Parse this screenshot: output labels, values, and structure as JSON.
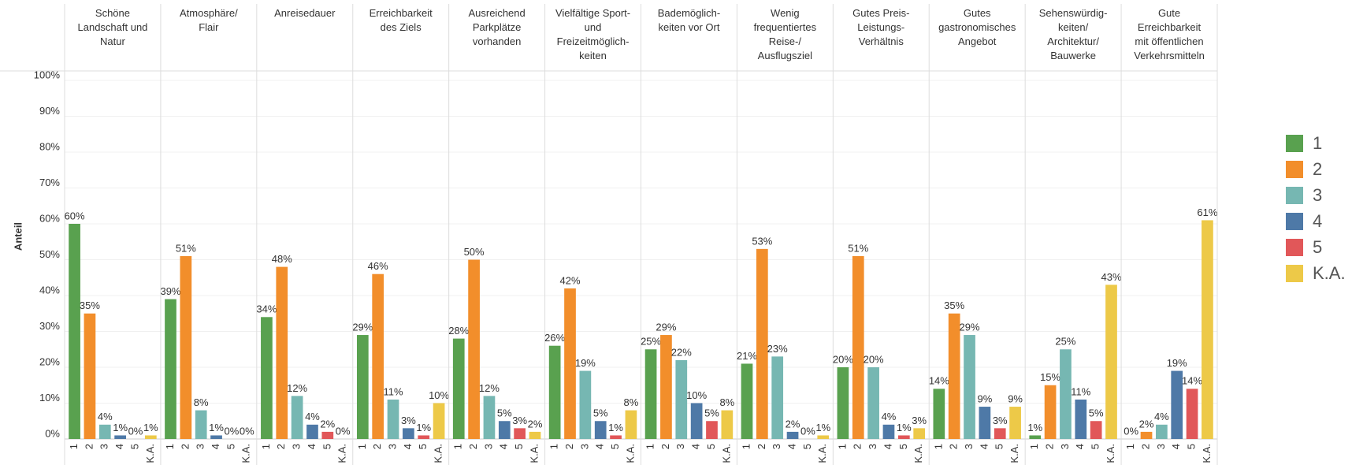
{
  "chart_data": {
    "type": "bar",
    "y_label": "Anteil",
    "categories": [
      "Schöne\nLandschaft und\nNatur",
      "Atmosphäre/\nFlair",
      "Anreisedauer",
      "Erreichbarkeit\ndes Ziels",
      "Ausreichend\nParkplätze\nvorhanden",
      "Vielfältige Sport-\nund\nFreizeitmöglich-\nkeiten",
      "Bademöglich-\nkeiten vor Ort",
      "Wenig\nfrequentiertes\nReise-/\nAusflugsziel",
      "Gutes Preis-\nLeistungs-\nVerhältnis",
      "Gutes\ngastronomisches\nAngebot",
      "Sehenswürdig-\nkeiten/\nArchitektur/\nBauwerke",
      "Gute\nErreichbarkeit\nmit öffentlichen\nVerkehrsmitteln"
    ],
    "series": [
      {
        "name": "1",
        "color": "#59a14f",
        "values": [
          60,
          39,
          34,
          29,
          28,
          26,
          25,
          21,
          20,
          14,
          1,
          0
        ],
        "value_labels": [
          "60%",
          "39%",
          "34%",
          "29%",
          "28%",
          "26%",
          "25%",
          "21%",
          "20%",
          "14%",
          "1%",
          "0%"
        ]
      },
      {
        "name": "2",
        "color": "#f28e2b",
        "values": [
          35,
          51,
          48,
          46,
          50,
          42,
          29,
          53,
          51,
          35,
          15,
          2
        ],
        "value_labels": [
          "35%",
          "51%",
          "48%",
          "46%",
          "50%",
          "42%",
          "29%",
          "53%",
          "51%",
          "35%",
          "15%",
          "2%"
        ]
      },
      {
        "name": "3",
        "color": "#76b7b2",
        "values": [
          4,
          8,
          12,
          11,
          12,
          19,
          22,
          23,
          20,
          29,
          25,
          4
        ],
        "value_labels": [
          "4%",
          "8%",
          "12%",
          "11%",
          "12%",
          "19%",
          "22%",
          "23%",
          "20%",
          "29%",
          "25%",
          "4%"
        ]
      },
      {
        "name": "4",
        "color": "#4e79a7",
        "values": [
          1,
          1,
          4,
          3,
          5,
          5,
          10,
          2,
          4,
          9,
          11,
          19
        ],
        "value_labels": [
          "1%",
          "1%",
          "4%",
          "3%",
          "5%",
          "5%",
          "10%",
          "2%",
          "4%",
          "9%",
          "11%",
          "19%"
        ]
      },
      {
        "name": "5",
        "color": "#e15759",
        "values": [
          0,
          0,
          2,
          1,
          3,
          1,
          5,
          0,
          1,
          3,
          5,
          14
        ],
        "value_labels": [
          "0%",
          "0%",
          "2%",
          "1%",
          "3%",
          "1%",
          "5%",
          "0%",
          "1%",
          "3%",
          "5%",
          "14%"
        ]
      },
      {
        "name": "K.A.",
        "color": "#edc948",
        "values": [
          1,
          0,
          0,
          10,
          2,
          8,
          8,
          1,
          3,
          9,
          43,
          61
        ],
        "value_labels": [
          "1%",
          "0%",
          "0%",
          "10%",
          "2%",
          "8%",
          "8%",
          "1%",
          "3%",
          "9%",
          "43%",
          "61%"
        ]
      }
    ],
    "ylim": [
      0,
      100
    ],
    "yticks": [
      {
        "value": 0,
        "label": "0%"
      },
      {
        "value": 10,
        "label": "10%"
      },
      {
        "value": 20,
        "label": "20%"
      },
      {
        "value": 30,
        "label": "30%"
      },
      {
        "value": 40,
        "label": "40%"
      },
      {
        "value": 50,
        "label": "50%"
      },
      {
        "value": 60,
        "label": "60%"
      },
      {
        "value": 70,
        "label": "70%"
      },
      {
        "value": 80,
        "label": "80%"
      },
      {
        "value": 90,
        "label": "90%"
      },
      {
        "value": 100,
        "label": "100%"
      }
    ],
    "grid": true,
    "legend": "right"
  }
}
